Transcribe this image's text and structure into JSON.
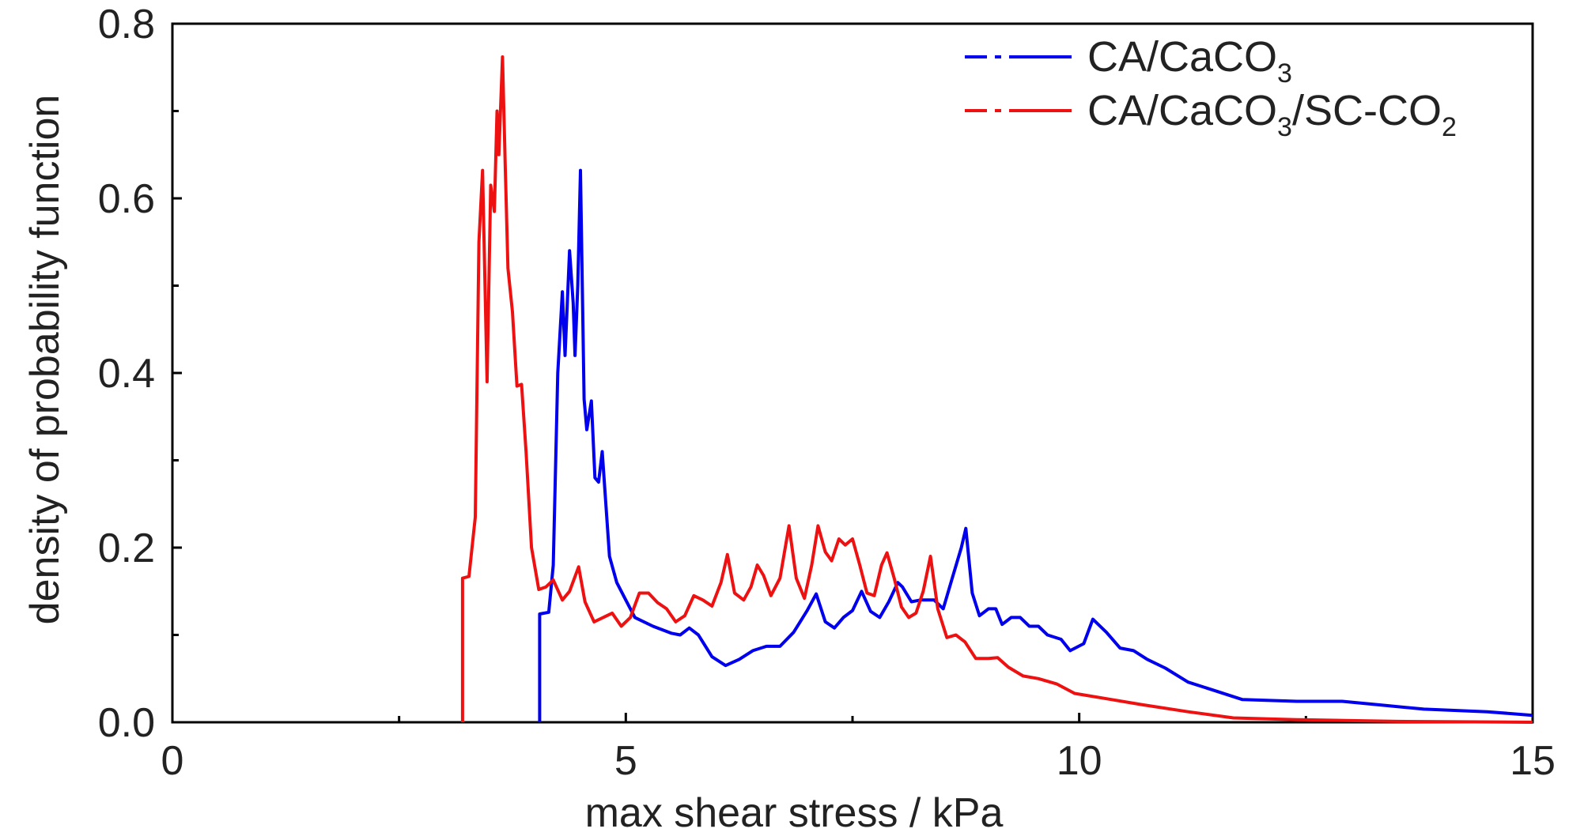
{
  "chart_data": {
    "type": "line",
    "title": "",
    "xlabel": "max shear stress / kPa",
    "ylabel": "density of probability function",
    "xlim": [
      0,
      15
    ],
    "ylim": [
      0,
      0.8
    ],
    "x_ticks": [
      0,
      5,
      10,
      15
    ],
    "x_tick_labels": [
      "0",
      "5",
      "10",
      "15"
    ],
    "x_minor_ticks": [
      2.5,
      7.5,
      12.5
    ],
    "y_ticks": [
      0,
      0.2,
      0.4,
      0.6,
      0.8
    ],
    "y_tick_labels": [
      "0.0",
      "0.2",
      "0.4",
      "0.6",
      "0.8"
    ],
    "y_minor_ticks": [
      0.1,
      0.3,
      0.5,
      0.7
    ],
    "grid": false,
    "legend_position": "top-right",
    "series": [
      {
        "name_main": "CA/CaCO",
        "name_sub": "3",
        "name_tail": "",
        "name_sub2": "",
        "color": "#0000ee",
        "points": [
          [
            4.05,
            0
          ],
          [
            4.05,
            0.124
          ],
          [
            4.15,
            0.126
          ],
          [
            4.2,
            0.18
          ],
          [
            4.25,
            0.4
          ],
          [
            4.3,
            0.493
          ],
          [
            4.33,
            0.42
          ],
          [
            4.38,
            0.54
          ],
          [
            4.42,
            0.48
          ],
          [
            4.44,
            0.42
          ],
          [
            4.47,
            0.5
          ],
          [
            4.5,
            0.632
          ],
          [
            4.54,
            0.37
          ],
          [
            4.57,
            0.335
          ],
          [
            4.62,
            0.368
          ],
          [
            4.66,
            0.28
          ],
          [
            4.7,
            0.275
          ],
          [
            4.74,
            0.31
          ],
          [
            4.78,
            0.25
          ],
          [
            4.82,
            0.19
          ],
          [
            4.9,
            0.16
          ],
          [
            5.0,
            0.14
          ],
          [
            5.1,
            0.12
          ],
          [
            5.3,
            0.11
          ],
          [
            5.5,
            0.102
          ],
          [
            5.6,
            0.1
          ],
          [
            5.7,
            0.108
          ],
          [
            5.8,
            0.1
          ],
          [
            5.95,
            0.075
          ],
          [
            6.1,
            0.065
          ],
          [
            6.25,
            0.072
          ],
          [
            6.4,
            0.082
          ],
          [
            6.55,
            0.087
          ],
          [
            6.7,
            0.087
          ],
          [
            6.85,
            0.103
          ],
          [
            7.0,
            0.128
          ],
          [
            7.1,
            0.147
          ],
          [
            7.2,
            0.115
          ],
          [
            7.3,
            0.108
          ],
          [
            7.4,
            0.12
          ],
          [
            7.5,
            0.128
          ],
          [
            7.6,
            0.15
          ],
          [
            7.7,
            0.127
          ],
          [
            7.8,
            0.12
          ],
          [
            7.9,
            0.138
          ],
          [
            8.0,
            0.16
          ],
          [
            8.05,
            0.155
          ],
          [
            8.15,
            0.138
          ],
          [
            8.25,
            0.14
          ],
          [
            8.4,
            0.14
          ],
          [
            8.5,
            0.13
          ],
          [
            8.6,
            0.165
          ],
          [
            8.7,
            0.2
          ],
          [
            8.75,
            0.222
          ],
          [
            8.82,
            0.148
          ],
          [
            8.9,
            0.122
          ],
          [
            9.0,
            0.13
          ],
          [
            9.08,
            0.13
          ],
          [
            9.15,
            0.112
          ],
          [
            9.25,
            0.12
          ],
          [
            9.35,
            0.12
          ],
          [
            9.45,
            0.11
          ],
          [
            9.55,
            0.11
          ],
          [
            9.65,
            0.1
          ],
          [
            9.8,
            0.095
          ],
          [
            9.9,
            0.082
          ],
          [
            10.05,
            0.09
          ],
          [
            10.15,
            0.118
          ],
          [
            10.3,
            0.103
          ],
          [
            10.45,
            0.085
          ],
          [
            10.6,
            0.082
          ],
          [
            10.75,
            0.072
          ],
          [
            10.95,
            0.062
          ],
          [
            11.2,
            0.046
          ],
          [
            11.5,
            0.036
          ],
          [
            11.8,
            0.026
          ],
          [
            12.4,
            0.024
          ],
          [
            12.9,
            0.024
          ],
          [
            13.3,
            0.02
          ],
          [
            13.8,
            0.015
          ],
          [
            14.5,
            0.012
          ],
          [
            15.0,
            0.008
          ]
        ]
      },
      {
        "name_main": "CA/CaCO",
        "name_sub": "3",
        "name_tail": "/SC-CO",
        "name_sub2": "2",
        "color": "#ee1111",
        "points": [
          [
            3.2,
            0
          ],
          [
            3.2,
            0.165
          ],
          [
            3.27,
            0.167
          ],
          [
            3.34,
            0.235
          ],
          [
            3.38,
            0.55
          ],
          [
            3.42,
            0.632
          ],
          [
            3.47,
            0.39
          ],
          [
            3.51,
            0.615
          ],
          [
            3.55,
            0.585
          ],
          [
            3.58,
            0.7
          ],
          [
            3.6,
            0.65
          ],
          [
            3.64,
            0.762
          ],
          [
            3.67,
            0.64
          ],
          [
            3.7,
            0.52
          ],
          [
            3.75,
            0.47
          ],
          [
            3.8,
            0.385
          ],
          [
            3.85,
            0.387
          ],
          [
            3.9,
            0.31
          ],
          [
            3.96,
            0.2
          ],
          [
            4.04,
            0.152
          ],
          [
            4.12,
            0.155
          ],
          [
            4.2,
            0.163
          ],
          [
            4.3,
            0.14
          ],
          [
            4.38,
            0.15
          ],
          [
            4.48,
            0.178
          ],
          [
            4.55,
            0.138
          ],
          [
            4.65,
            0.115
          ],
          [
            4.75,
            0.12
          ],
          [
            4.85,
            0.125
          ],
          [
            4.95,
            0.11
          ],
          [
            5.05,
            0.12
          ],
          [
            5.15,
            0.148
          ],
          [
            5.25,
            0.148
          ],
          [
            5.35,
            0.137
          ],
          [
            5.45,
            0.13
          ],
          [
            5.55,
            0.115
          ],
          [
            5.65,
            0.122
          ],
          [
            5.75,
            0.145
          ],
          [
            5.85,
            0.14
          ],
          [
            5.95,
            0.133
          ],
          [
            6.05,
            0.16
          ],
          [
            6.12,
            0.192
          ],
          [
            6.2,
            0.148
          ],
          [
            6.3,
            0.14
          ],
          [
            6.38,
            0.155
          ],
          [
            6.45,
            0.18
          ],
          [
            6.52,
            0.168
          ],
          [
            6.6,
            0.145
          ],
          [
            6.7,
            0.165
          ],
          [
            6.8,
            0.225
          ],
          [
            6.88,
            0.165
          ],
          [
            6.97,
            0.142
          ],
          [
            7.05,
            0.18
          ],
          [
            7.12,
            0.225
          ],
          [
            7.2,
            0.195
          ],
          [
            7.27,
            0.185
          ],
          [
            7.35,
            0.21
          ],
          [
            7.42,
            0.203
          ],
          [
            7.5,
            0.21
          ],
          [
            7.58,
            0.18
          ],
          [
            7.66,
            0.148
          ],
          [
            7.74,
            0.145
          ],
          [
            7.82,
            0.18
          ],
          [
            7.88,
            0.194
          ],
          [
            7.96,
            0.165
          ],
          [
            8.04,
            0.132
          ],
          [
            8.12,
            0.12
          ],
          [
            8.2,
            0.125
          ],
          [
            8.28,
            0.15
          ],
          [
            8.36,
            0.19
          ],
          [
            8.44,
            0.13
          ],
          [
            8.54,
            0.097
          ],
          [
            8.64,
            0.1
          ],
          [
            8.74,
            0.092
          ],
          [
            8.86,
            0.073
          ],
          [
            9.0,
            0.073
          ],
          [
            9.1,
            0.074
          ],
          [
            9.22,
            0.063
          ],
          [
            9.38,
            0.053
          ],
          [
            9.55,
            0.05
          ],
          [
            9.75,
            0.044
          ],
          [
            9.95,
            0.033
          ],
          [
            10.3,
            0.027
          ],
          [
            10.7,
            0.02
          ],
          [
            11.2,
            0.012
          ],
          [
            11.7,
            0.005
          ],
          [
            12.4,
            0.003
          ],
          [
            13.5,
            0.001
          ],
          [
            15.0,
            0
          ]
        ]
      }
    ]
  }
}
